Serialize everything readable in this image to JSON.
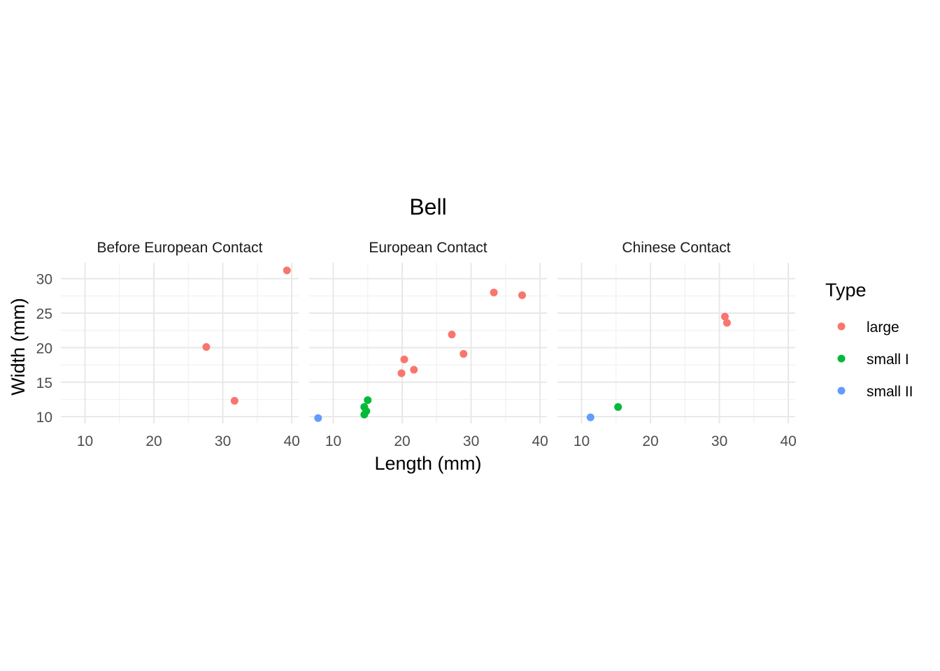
{
  "chart_data": {
    "type": "scatter",
    "title": "Bell",
    "xlabel": "Length (mm)",
    "ylabel": "Width (mm)",
    "xlim": [
      6.5,
      41
    ],
    "ylim": [
      9,
      32.3
    ],
    "xticks": [
      10,
      20,
      30,
      40
    ],
    "yticks": [
      10,
      15,
      20,
      25,
      30
    ],
    "grid": true,
    "legend": {
      "title": "Type",
      "placement": "right",
      "items": [
        {
          "label": "large",
          "color": "#F8766D"
        },
        {
          "label": "small I",
          "color": "#00BA38"
        },
        {
          "label": "small II",
          "color": "#619CFF"
        }
      ]
    },
    "facets": [
      {
        "label": "Before European Contact",
        "points": [
          {
            "x": 39.3,
            "y": 31.2,
            "type": "large"
          },
          {
            "x": 27.6,
            "y": 20.1,
            "type": "large"
          },
          {
            "x": 31.7,
            "y": 12.3,
            "type": "large"
          }
        ]
      },
      {
        "label": "European Contact",
        "points": [
          {
            "x": 33.3,
            "y": 28.0,
            "type": "large"
          },
          {
            "x": 37.4,
            "y": 27.6,
            "type": "large"
          },
          {
            "x": 27.2,
            "y": 21.9,
            "type": "large"
          },
          {
            "x": 28.9,
            "y": 19.1,
            "type": "large"
          },
          {
            "x": 20.3,
            "y": 18.3,
            "type": "large"
          },
          {
            "x": 21.7,
            "y": 16.8,
            "type": "large"
          },
          {
            "x": 19.9,
            "y": 16.3,
            "type": "large"
          },
          {
            "x": 15.0,
            "y": 12.4,
            "type": "small I"
          },
          {
            "x": 14.5,
            "y": 11.4,
            "type": "small I"
          },
          {
            "x": 14.8,
            "y": 10.8,
            "type": "small I"
          },
          {
            "x": 14.5,
            "y": 10.3,
            "type": "small I"
          },
          {
            "x": 7.8,
            "y": 9.8,
            "type": "small II"
          }
        ]
      },
      {
        "label": "Chinese Contact",
        "points": [
          {
            "x": 30.8,
            "y": 24.5,
            "type": "large"
          },
          {
            "x": 31.1,
            "y": 23.6,
            "type": "large"
          },
          {
            "x": 15.3,
            "y": 11.4,
            "type": "small I"
          },
          {
            "x": 11.3,
            "y": 9.9,
            "type": "small II"
          }
        ]
      }
    ]
  }
}
